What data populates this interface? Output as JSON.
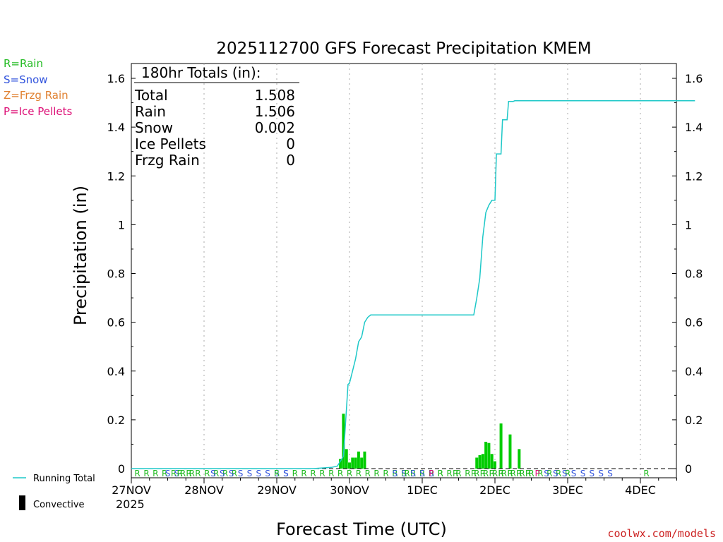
{
  "chart_data": {
    "type": "line",
    "title": "2025112700 GFS Forecast Precipitation KMEM",
    "xlabel": "Forecast Time (UTC)",
    "ylabel": "Precipitation (in)",
    "ylim": [
      0,
      1.65
    ],
    "xlim_hours": [
      0,
      186
    ],
    "y_ticks": [
      "0",
      "0.2",
      "0.4",
      "0.6",
      "0.8",
      "1",
      "1.2",
      "1.4",
      "1.6"
    ],
    "y_tick_values": [
      0,
      0.2,
      0.4,
      0.6,
      0.8,
      1.0,
      1.2,
      1.4,
      1.6
    ],
    "x_ticks": [
      {
        "label": "27NOV",
        "hour": 0
      },
      {
        "label": "28NOV",
        "hour": 24
      },
      {
        "label": "29NOV",
        "hour": 48
      },
      {
        "label": "30NOV",
        "hour": 72
      },
      {
        "label": "1DEC",
        "hour": 96
      },
      {
        "label": "2DEC",
        "hour": 120
      },
      {
        "label": "3DEC",
        "hour": 144
      },
      {
        "label": "4DEC",
        "hour": 168
      }
    ],
    "year_label": "2025",
    "running_total": {
      "name": "Running Total",
      "color": "#1ec8c8",
      "hours": [
        0,
        60,
        66,
        68,
        70,
        70.5,
        71.5,
        72,
        73,
        74,
        75,
        76,
        77,
        78,
        79,
        80,
        96,
        113,
        114,
        115,
        116,
        117,
        118,
        119,
        120,
        120.5,
        122,
        122.5,
        124,
        124.5,
        126,
        126.5,
        128,
        186
      ],
      "values": [
        0,
        0,
        0.005,
        0.01,
        0.05,
        0.15,
        0.345,
        0.35,
        0.4,
        0.45,
        0.52,
        0.54,
        0.6,
        0.62,
        0.63,
        0.63,
        0.63,
        0.63,
        0.7,
        0.78,
        0.95,
        1.05,
        1.08,
        1.1,
        1.1,
        1.29,
        1.29,
        1.43,
        1.43,
        1.505,
        1.505,
        1.508,
        1.508,
        1.508
      ]
    },
    "bars": {
      "name": "Convective",
      "color": "#00cc00",
      "hours": [
        69,
        70,
        71,
        72,
        73,
        74,
        75,
        76,
        77,
        114,
        115,
        116,
        117,
        118,
        119,
        120,
        122,
        125,
        128
      ],
      "values": [
        0.04,
        0.225,
        0.08,
        0.025,
        0.045,
        0.045,
        0.07,
        0.045,
        0.07,
        0.045,
        0.055,
        0.06,
        0.11,
        0.105,
        0.06,
        0.03,
        0.185,
        0.14,
        0.08
      ]
    },
    "legend": {
      "running_total": "Running Total",
      "convective": "Convective",
      "types": [
        {
          "text": "R=Rain",
          "color": "#22bb22"
        },
        {
          "text": "S=Snow",
          "color": "#3355dd"
        },
        {
          "text": "Z=Frzg Rain",
          "color": "#e08030"
        },
        {
          "text": "P=Ice Pellets",
          "color": "#dd1177"
        }
      ]
    },
    "totals": {
      "header": "180hr Totals (in):",
      "rows": [
        {
          "label": "Total",
          "value": "1.508"
        },
        {
          "label": "Rain",
          "value": "1.506"
        },
        {
          "label": "Snow",
          "value": "0.002"
        },
        {
          "label": "Ice Pellets",
          "value": "0"
        },
        {
          "label": "Frzg Rain",
          "value": "0"
        }
      ]
    },
    "precip_types": [
      {
        "letters": "RRRRRRR",
        "color": "#22bb22",
        "start_hour": 2.0
      },
      {
        "letters": "SS",
        "color": "#3355dd",
        "start_hour": 12.0
      },
      {
        "letters": "RRRRRRR",
        "color": "#22bb22",
        "start_hour": 16.0
      },
      {
        "letters": "SSSSSSSSS",
        "color": "#3355dd",
        "start_hour": 27.0
      },
      {
        "letters": "R",
        "color": "#22bb22",
        "start_hour": 48.0
      },
      {
        "letters": "S",
        "color": "#3355dd",
        "start_hour": 51.0
      },
      {
        "letters": "RRRRRRRRRRRRRRRRRRRRRRRRRRRRRRR",
        "color": "#22bb22",
        "start_hour": 54.0
      },
      {
        "letters": "SS",
        "color": "#3355dd",
        "start_hour": 87.0
      },
      {
        "letters": "R",
        "color": "#22bb22",
        "start_hour": 91.0
      },
      {
        "letters": "SSS",
        "color": "#3355dd",
        "start_hour": 93.0
      },
      {
        "letters": "P",
        "color": "#dd1177",
        "start_hour": 99.0
      },
      {
        "letters": "R",
        "color": "#22bb22",
        "start_hour": 102.0
      },
      {
        "letters": "R",
        "color": "#22bb22",
        "start_hour": 107.0
      },
      {
        "letters": "RRRRRRR",
        "color": "#22bb22",
        "start_hour": 113.0
      },
      {
        "letters": "R",
        "color": "#22bb22",
        "start_hour": 122.0
      },
      {
        "letters": "R",
        "color": "#22bb22",
        "start_hour": 125.0
      },
      {
        "letters": "R",
        "color": "#22bb22",
        "start_hour": 128.0
      },
      {
        "letters": "R",
        "color": "#22bb22",
        "start_hour": 131.0
      },
      {
        "letters": "P",
        "color": "#dd1177",
        "start_hour": 134.0
      },
      {
        "letters": "SSSSSSS",
        "color": "#3355dd",
        "start_hour": 137.0
      },
      {
        "letters": "S",
        "color": "#3355dd",
        "start_hour": 158.0
      },
      {
        "letters": "R",
        "color": "#22bb22",
        "start_hour": 170.0
      }
    ]
  },
  "footer": {
    "credit": "coolwx.com/models"
  }
}
